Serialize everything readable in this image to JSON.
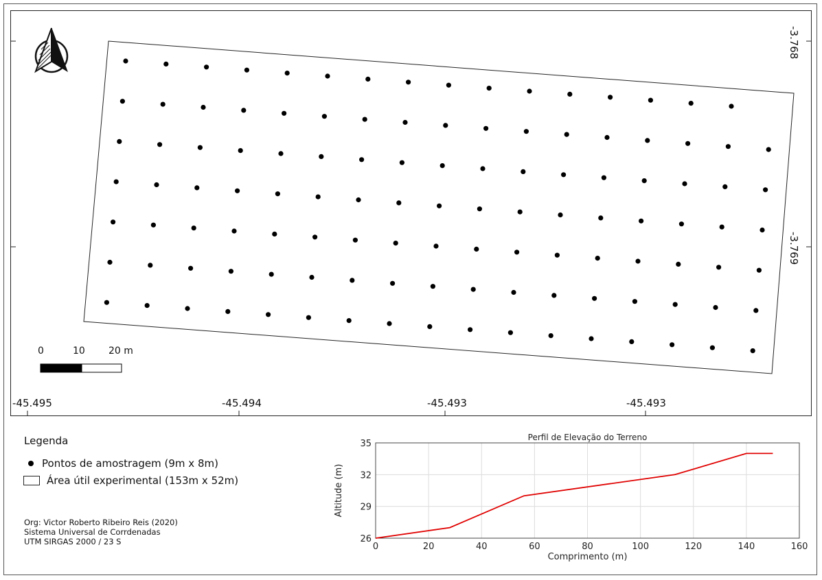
{
  "map": {
    "longitude_labels": [
      "-45.495",
      "-45.494",
      "-45.493",
      "-45.493"
    ],
    "latitude_labels": [
      "-3.768",
      "-3.769"
    ],
    "scale_bar": {
      "labels": [
        "0",
        "10",
        "20 m"
      ]
    },
    "sampling_grid": {
      "rows": 7,
      "columns": 17
    }
  },
  "legend": {
    "title": "Legenda",
    "items": [
      {
        "symbol": "dot",
        "label": "Pontos de amostragem (9m x 8m)"
      },
      {
        "symbol": "box",
        "label": "Área útil experimental (153m x 52m)"
      }
    ]
  },
  "credits": {
    "lines": [
      "Org: Victor Roberto Ribeiro Reis (2020)",
      "Sistema Universal de Corrdenadas",
      "UTM SIRGAS 2000 / 23 S"
    ]
  },
  "chart_data": {
    "type": "line",
    "title": "Perfil de Elevação do Terreno",
    "xlabel": "Comprimento (m)",
    "ylabel": "Altitude (m)",
    "xlim": [
      0,
      160
    ],
    "ylim": [
      26,
      35
    ],
    "xticks": [
      0,
      20,
      40,
      60,
      80,
      100,
      120,
      140,
      160
    ],
    "yticks": [
      26,
      29,
      32,
      35
    ],
    "grid": true,
    "series": [
      {
        "color": "#e00000",
        "x": [
          0,
          28,
          56,
          113,
          140,
          150
        ],
        "y": [
          26,
          27,
          30,
          32,
          34,
          34
        ]
      }
    ]
  }
}
